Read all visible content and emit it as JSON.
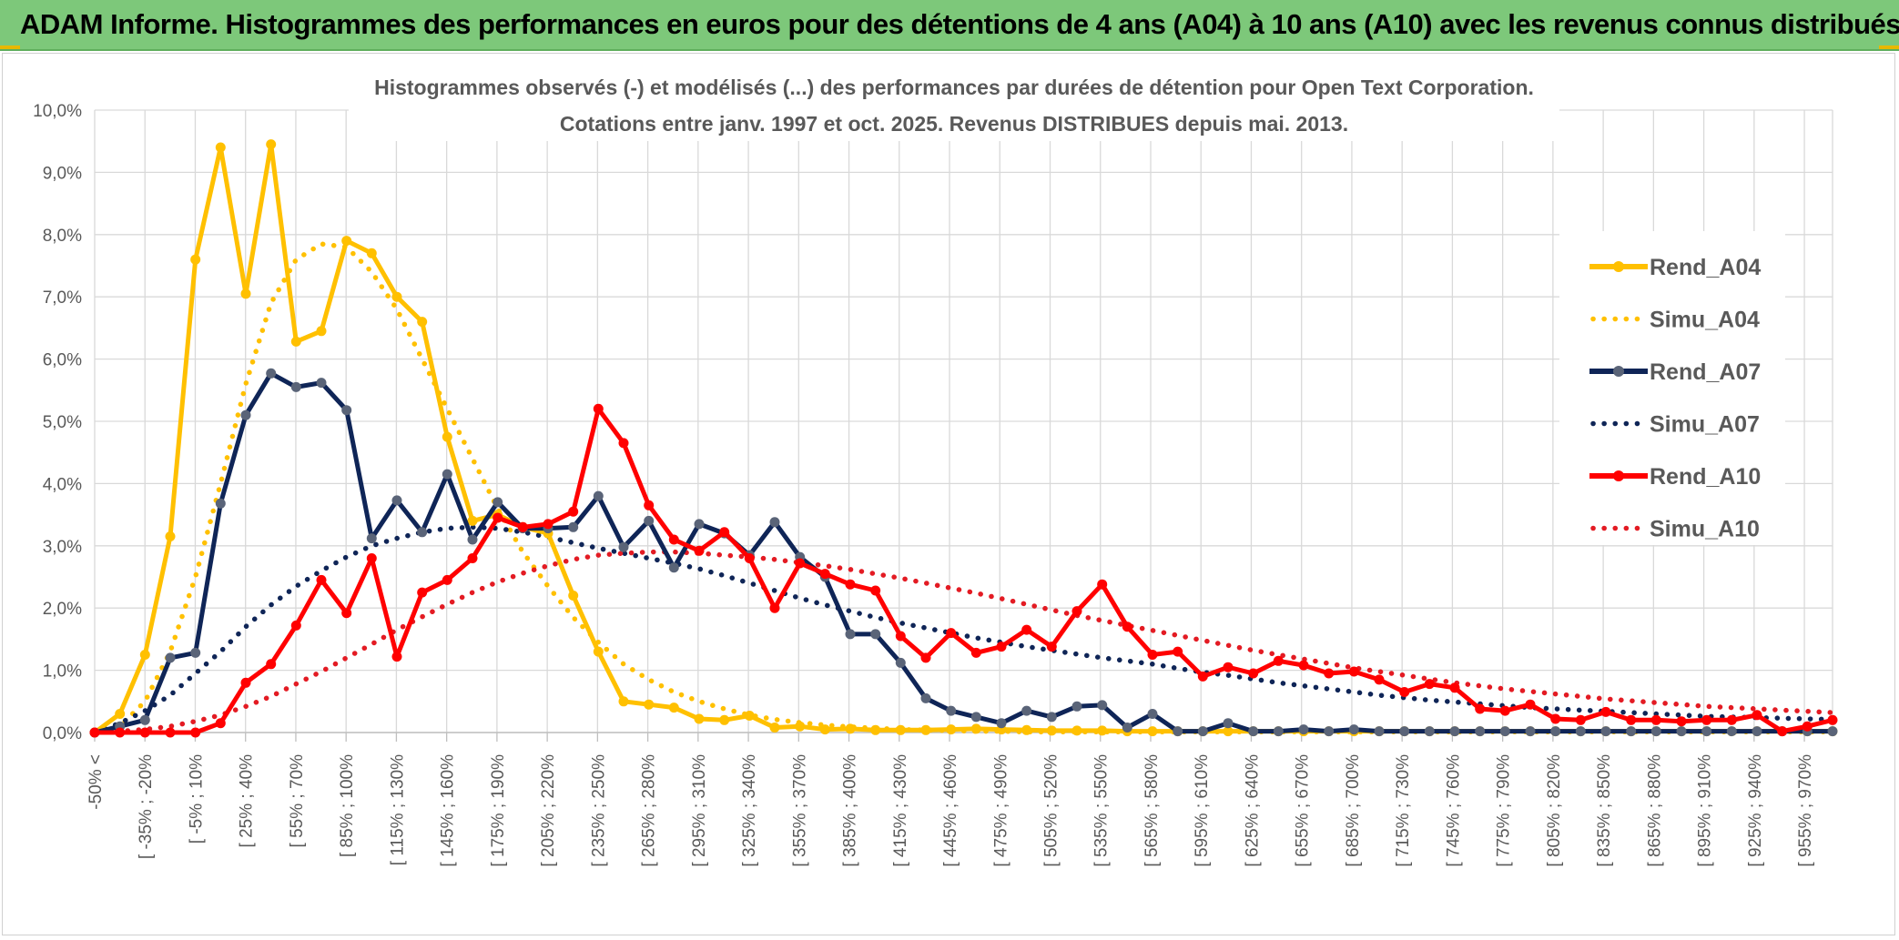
{
  "header": {
    "title": "ADAM Informe. Histogrammes des performances en euros pour des détentions de 4 ans (A04) à 10 ans (A10) avec les revenus connus distribués"
  },
  "chart_data": {
    "type": "line",
    "title": "Histogrammes observés (-) et modélisés (...) des performances par durées de détention pour Open Text Corporation.",
    "subtitle": "Cotations entre janv. 1997 et oct. 2025. Revenus DISTRIBUES depuis mai. 2013.",
    "xlabel": "",
    "ylabel": "",
    "ylim": [
      0,
      10
    ],
    "yticks": [
      "0,0%",
      "1,0%",
      "2,0%",
      "3,0%",
      "4,0%",
      "5,0%",
      "6,0%",
      "7,0%",
      "8,0%",
      "9,0%",
      "10,0%"
    ],
    "grid": true,
    "legend_position": "right",
    "x_tick_labels": [
      "-50% <",
      "[ -35% ; -20%",
      "[ -5% ; 10%",
      "[ 25% ; 40%",
      "[ 55% ; 70%",
      "[ 85% ; 100%",
      "[ 115% ; 130%",
      "[ 145% ; 160%",
      "[ 175% ; 190%",
      "[ 205% ; 220%",
      "[ 235% ; 250%",
      "[ 265% ; 280%",
      "[ 295% ; 310%",
      "[ 325% ; 340%",
      "[ 355% ; 370%",
      "[ 385% ; 400%",
      "[ 415% ; 430%",
      "[ 445% ; 460%",
      "[ 475% ; 490%",
      "[ 505% ; 520%",
      "[ 535% ; 550%",
      "[ 565% ; 580%",
      "[ 595% ; 610%",
      "[ 625% ; 640%",
      "[ 655% ; 670%",
      "[ 685% ; 700%",
      "[ 715% ; 730%",
      "[ 745% ; 760%",
      "[ 775% ; 790%",
      "[ 805% ; 820%",
      "[ 835% ; 850%",
      "[ 865% ; 880%",
      "[ 895% ; 910%",
      "[ 925% ; 940%",
      "[ 955% ; 970%"
    ],
    "series": [
      {
        "name": "Rend_A04",
        "style": "solid",
        "color": "#ffc000",
        "values": [
          0,
          0.3,
          1.25,
          3.15,
          7.6,
          9.4,
          7.05,
          9.45,
          6.28,
          6.45,
          7.9,
          7.7,
          7.0,
          6.6,
          4.75,
          3.4,
          3.5,
          3.3,
          3.2,
          2.2,
          1.3,
          0.5,
          0.45,
          0.4,
          0.22,
          0.2,
          0.27,
          0.08,
          0.1,
          0.05,
          0.06,
          0.04,
          0.04,
          0.04,
          0.05,
          0.06,
          0.05,
          0.04,
          0.03,
          0.03,
          0.03,
          0.02,
          0.02,
          0.02,
          0.02,
          0.02,
          0.02,
          0.02,
          0.02,
          0.02,
          0.02,
          0.02,
          0.02,
          0.02,
          0.02,
          0.02,
          0.02,
          0.02,
          0.02,
          0.02,
          0.02,
          0.02,
          0.02,
          0.02,
          0.02,
          0.02,
          0.02,
          0.02,
          0.02,
          0.02
        ]
      },
      {
        "name": "Simu_A04",
        "style": "dotted",
        "color": "#ffc000",
        "values": [
          0,
          0.1,
          0.5,
          1.3,
          2.5,
          4.0,
          5.6,
          6.9,
          7.6,
          7.85,
          7.8,
          7.4,
          6.8,
          6.0,
          5.2,
          4.4,
          3.6,
          2.9,
          2.35,
          1.85,
          1.45,
          1.1,
          0.85,
          0.65,
          0.5,
          0.38,
          0.28,
          0.21,
          0.16,
          0.12,
          0.09,
          0.07,
          0.05,
          0.04,
          0.03,
          0.02,
          0.02,
          0.01,
          0.01,
          0.01,
          0.01,
          0.01,
          0.01,
          0.01,
          0.01,
          0.01,
          0.01,
          0.01,
          0.01,
          0.01,
          0.01,
          0.01,
          0.01,
          0.01,
          0.01,
          0.01,
          0.01,
          0.01,
          0.01,
          0.01,
          0.01,
          0.01,
          0.01,
          0.01,
          0.01,
          0.01,
          0.01,
          0.01,
          0.01,
          0.01
        ]
      },
      {
        "name": "Rend_A07",
        "style": "solid",
        "color": "#0f2557",
        "values": [
          0,
          0.1,
          0.2,
          1.2,
          1.28,
          3.68,
          5.1,
          5.77,
          5.55,
          5.62,
          5.18,
          3.12,
          3.73,
          3.22,
          4.15,
          3.1,
          3.7,
          3.28,
          3.28,
          3.3,
          3.8,
          2.98,
          3.4,
          2.65,
          3.35,
          3.2,
          2.85,
          3.38,
          2.82,
          2.5,
          1.58,
          1.58,
          1.12,
          0.55,
          0.35,
          0.25,
          0.15,
          0.35,
          0.25,
          0.42,
          0.44,
          0.08,
          0.3,
          0.02,
          0.02,
          0.15,
          0.02,
          0.02,
          0.05,
          0.02,
          0.05,
          0.02,
          0.02,
          0.02,
          0.02,
          0.02,
          0.02,
          0.02,
          0.02,
          0.02,
          0.02,
          0.02,
          0.02,
          0.02,
          0.02,
          0.02,
          0.02,
          0.02,
          0.02,
          0.02
        ]
      },
      {
        "name": "Simu_A07",
        "style": "dotted",
        "color": "#0f2557",
        "values": [
          0,
          0.15,
          0.35,
          0.6,
          0.95,
          1.3,
          1.7,
          2.05,
          2.35,
          2.6,
          2.82,
          3.0,
          3.12,
          3.22,
          3.28,
          3.3,
          3.28,
          3.22,
          3.14,
          3.05,
          2.96,
          2.88,
          2.8,
          2.72,
          2.63,
          2.52,
          2.4,
          2.28,
          2.16,
          2.05,
          1.95,
          1.85,
          1.76,
          1.68,
          1.6,
          1.52,
          1.45,
          1.38,
          1.32,
          1.26,
          1.2,
          1.15,
          1.1,
          1.03,
          0.97,
          0.92,
          0.86,
          0.8,
          0.75,
          0.7,
          0.65,
          0.6,
          0.56,
          0.52,
          0.49,
          0.46,
          0.43,
          0.4,
          0.38,
          0.36,
          0.34,
          0.32,
          0.3,
          0.28,
          0.26,
          0.25,
          0.24,
          0.23,
          0.22,
          0.21
        ]
      },
      {
        "name": "Rend_A10",
        "style": "solid",
        "color": "#ff0000",
        "values": [
          0,
          0,
          0,
          0,
          0,
          0.15,
          0.8,
          1.1,
          1.72,
          2.45,
          1.92,
          2.8,
          1.22,
          2.25,
          2.45,
          2.8,
          3.45,
          3.3,
          3.35,
          3.55,
          5.2,
          4.65,
          3.65,
          3.1,
          2.92,
          3.22,
          2.8,
          2.0,
          2.72,
          2.55,
          2.38,
          2.28,
          1.55,
          1.2,
          1.6,
          1.28,
          1.38,
          1.65,
          1.38,
          1.95,
          2.38,
          1.7,
          1.25,
          1.3,
          0.9,
          1.05,
          0.95,
          1.15,
          1.08,
          0.95,
          0.98,
          0.85,
          0.65,
          0.78,
          0.72,
          0.38,
          0.35,
          0.45,
          0.22,
          0.2,
          0.33,
          0.2,
          0.2,
          0.18,
          0.2,
          0.2,
          0.28,
          0.02,
          0.1,
          0.2
        ]
      },
      {
        "name": "Simu_A10",
        "style": "dotted",
        "color": "#e31b23",
        "values": [
          0,
          0.02,
          0.05,
          0.1,
          0.18,
          0.28,
          0.42,
          0.58,
          0.78,
          0.98,
          1.2,
          1.42,
          1.65,
          1.86,
          2.06,
          2.25,
          2.42,
          2.56,
          2.68,
          2.78,
          2.85,
          2.88,
          2.9,
          2.9,
          2.88,
          2.85,
          2.82,
          2.78,
          2.73,
          2.68,
          2.62,
          2.55,
          2.48,
          2.4,
          2.32,
          2.24,
          2.15,
          2.06,
          1.97,
          1.88,
          1.8,
          1.72,
          1.64,
          1.56,
          1.48,
          1.4,
          1.32,
          1.25,
          1.18,
          1.11,
          1.04,
          0.98,
          0.92,
          0.86,
          0.8,
          0.75,
          0.7,
          0.66,
          0.62,
          0.58,
          0.54,
          0.51,
          0.48,
          0.45,
          0.42,
          0.4,
          0.38,
          0.36,
          0.34,
          0.32
        ]
      }
    ]
  }
}
